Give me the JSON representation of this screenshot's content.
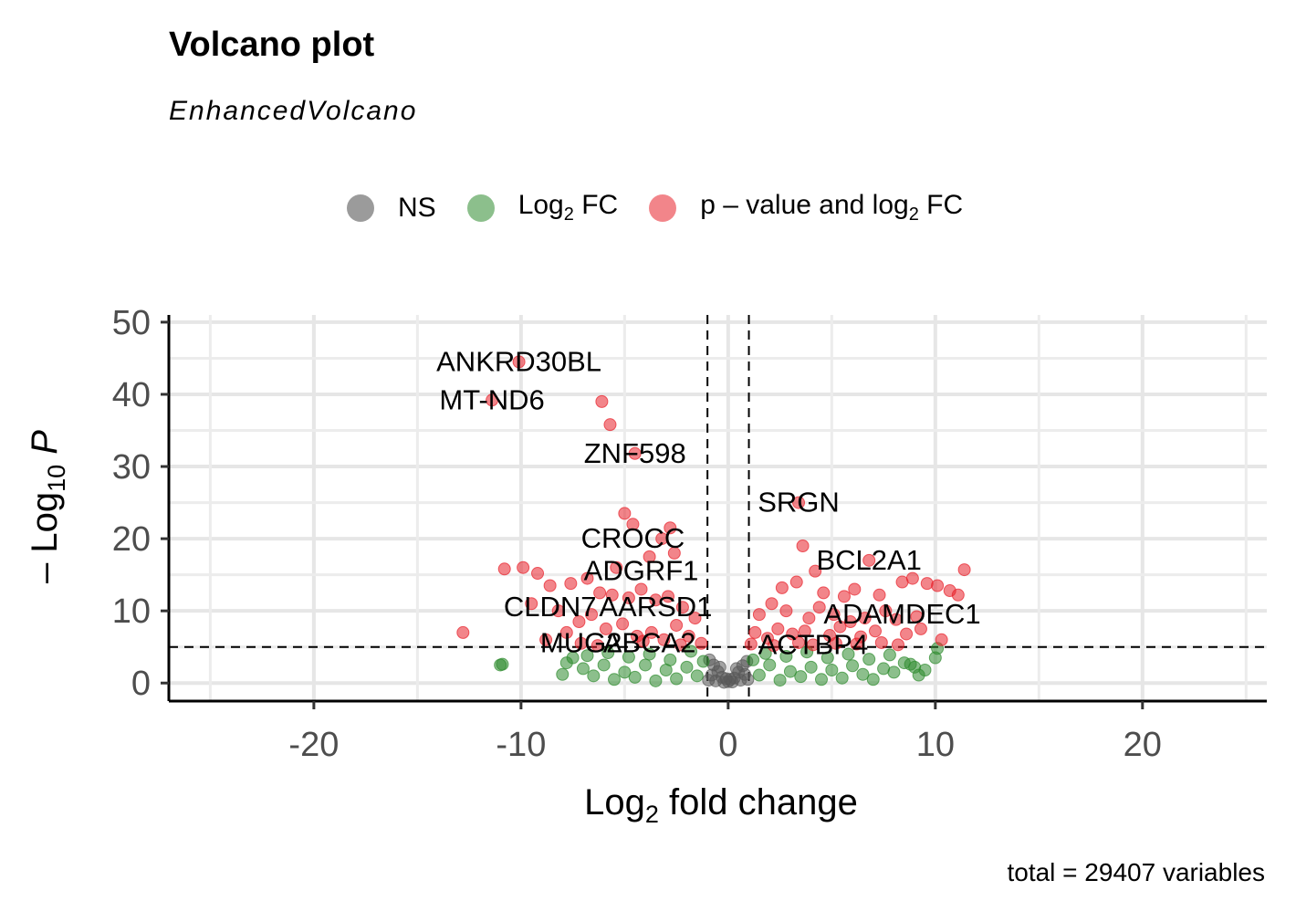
{
  "chart_data": {
    "type": "scatter",
    "title": "Volcano plot",
    "subtitle": "EnhancedVolcano",
    "caption": "total = 29407 variables",
    "xlabel": "Log2 fold change",
    "ylabel": "-Log10 P",
    "xlim": [
      -27,
      26
    ],
    "ylim": [
      -2.5,
      51
    ],
    "x_ticks": [
      -20,
      -10,
      0,
      10,
      20
    ],
    "x_tick_labels": [
      "-20",
      "-10",
      "0",
      "10",
      "20"
    ],
    "y_ticks": [
      0,
      10,
      20,
      30,
      40,
      50
    ],
    "y_tick_labels": [
      "0",
      "10",
      "20",
      "30",
      "40",
      "50"
    ],
    "grid": true,
    "legend_position": "top",
    "fc_cutoff": 1,
    "p_cutoff_neglog10": 5,
    "series": [
      {
        "name": "NS",
        "color": "#595959",
        "points": [
          [
            -0.9,
            3.2
          ],
          [
            -0.7,
            2.5
          ],
          [
            -0.5,
            1.6
          ],
          [
            -0.3,
            0.8
          ],
          [
            0,
            0.2
          ],
          [
            0.3,
            0.7
          ],
          [
            0.5,
            1.5
          ],
          [
            0.7,
            2.4
          ],
          [
            0.9,
            3.0
          ],
          [
            -0.6,
            0.3
          ],
          [
            0.6,
            0.4
          ],
          [
            -0.2,
            0.1
          ],
          [
            0.2,
            0.15
          ],
          [
            -0.8,
            1.1
          ],
          [
            0.8,
            1.2
          ],
          [
            -0.4,
            2.2
          ],
          [
            0.4,
            2.0
          ],
          [
            0.1,
            0.5
          ],
          [
            -0.1,
            0.6
          ],
          [
            -0.95,
            0.4
          ],
          [
            0.95,
            0.5
          ]
        ]
      },
      {
        "name": "Log2 FC",
        "color": "#2e8b2e",
        "points": [
          [
            -11,
            2.5
          ],
          [
            -10.9,
            2.6
          ],
          [
            -7.5,
            3.5
          ],
          [
            -7,
            2.0
          ],
          [
            -6.5,
            1.0
          ],
          [
            -6,
            2.5
          ],
          [
            -5.5,
            0.5
          ],
          [
            -5,
            1.5
          ],
          [
            -4.5,
            0.8
          ],
          [
            -4,
            2.5
          ],
          [
            -3.5,
            0.3
          ],
          [
            -3,
            1.8
          ],
          [
            -2.5,
            0.6
          ],
          [
            -2,
            2.2
          ],
          [
            -1.5,
            1.0
          ],
          [
            -1.2,
            3.0
          ],
          [
            1.2,
            3.2
          ],
          [
            1.5,
            1.1
          ],
          [
            2,
            2.5
          ],
          [
            2.5,
            0.4
          ],
          [
            3,
            1.6
          ],
          [
            3.5,
            0.9
          ],
          [
            4,
            2.2
          ],
          [
            4.5,
            0.5
          ],
          [
            5,
            1.8
          ],
          [
            5.5,
            0.7
          ],
          [
            6,
            2.4
          ],
          [
            6.5,
            1.2
          ],
          [
            7,
            0.5
          ],
          [
            7.5,
            2.0
          ],
          [
            8,
            1.5
          ],
          [
            8.5,
            2.8
          ],
          [
            9,
            2.2
          ],
          [
            9.5,
            1.8
          ],
          [
            10,
            3.5
          ],
          [
            10.1,
            4.8
          ],
          [
            -8,
            1.2
          ],
          [
            -7.8,
            2.8
          ],
          [
            -6.8,
            3.8
          ],
          [
            -5.8,
            4.2
          ],
          [
            -4.8,
            3.6
          ],
          [
            -3.8,
            4.0
          ],
          [
            -2.8,
            3.2
          ],
          [
            -1.8,
            4.4
          ],
          [
            1.8,
            4.1
          ],
          [
            2.8,
            3.7
          ],
          [
            3.8,
            4.3
          ],
          [
            4.8,
            3.5
          ],
          [
            5.8,
            4.0
          ],
          [
            6.8,
            3.3
          ],
          [
            7.8,
            3.9
          ],
          [
            8.8,
            2.6
          ],
          [
            9.2,
            1.1
          ]
        ]
      },
      {
        "name": "p - value and log2 FC",
        "color": "#e8202a",
        "points": [
          [
            -10.1,
            44.5
          ],
          [
            -11.4,
            39.2
          ],
          [
            -6.1,
            39.0
          ],
          [
            -5.7,
            35.8
          ],
          [
            -4.5,
            31.8
          ],
          [
            3.4,
            25.0
          ],
          [
            -5,
            23.5
          ],
          [
            -4.6,
            22.0
          ],
          [
            -2.8,
            21.5
          ],
          [
            -3.2,
            20.0
          ],
          [
            -2.6,
            18.0
          ],
          [
            -3.8,
            17.5
          ],
          [
            -5.4,
            16.0
          ],
          [
            -10.8,
            15.8
          ],
          [
            -9.9,
            16.0
          ],
          [
            -9.2,
            15.2
          ],
          [
            -8.6,
            13.5
          ],
          [
            -7.6,
            13.8
          ],
          [
            -6.8,
            14.5
          ],
          [
            -6.2,
            12.5
          ],
          [
            -5.6,
            12.2
          ],
          [
            -4.8,
            11.8
          ],
          [
            -4.2,
            13.0
          ],
          [
            -3.5,
            11.5
          ],
          [
            -2.9,
            12.0
          ],
          [
            -2.2,
            10.5
          ],
          [
            -1.6,
            9.0
          ],
          [
            -9.5,
            11.0
          ],
          [
            -8.2,
            10.0
          ],
          [
            -7.2,
            8.5
          ],
          [
            -6.6,
            9.5
          ],
          [
            -5.9,
            7.5
          ],
          [
            -5.1,
            8.2
          ],
          [
            -4.4,
            6.5
          ],
          [
            -3.7,
            7.0
          ],
          [
            -3.1,
            6.0
          ],
          [
            -2.5,
            8.0
          ],
          [
            -1.9,
            6.5
          ],
          [
            -1.3,
            5.5
          ],
          [
            -7.8,
            7.0
          ],
          [
            -8.8,
            6.0
          ],
          [
            -12.8,
            7.0
          ],
          [
            -7.1,
            5.5
          ],
          [
            -6.3,
            5.2
          ],
          [
            -4.1,
            5.8
          ],
          [
            -2.3,
            5.3
          ],
          [
            3.6,
            19.0
          ],
          [
            6.8,
            17.0
          ],
          [
            4.2,
            15.5
          ],
          [
            3.3,
            14.0
          ],
          [
            2.6,
            13.2
          ],
          [
            4.6,
            12.5
          ],
          [
            5.6,
            12.0
          ],
          [
            6.1,
            13.0
          ],
          [
            7.3,
            12.2
          ],
          [
            8.4,
            14.0
          ],
          [
            8.9,
            14.5
          ],
          [
            9.6,
            13.8
          ],
          [
            10.1,
            13.5
          ],
          [
            10.7,
            12.8
          ],
          [
            11.4,
            15.7
          ],
          [
            11.1,
            12.2
          ],
          [
            1.5,
            9.5
          ],
          [
            2.1,
            11.0
          ],
          [
            2.8,
            10.0
          ],
          [
            3.9,
            9.0
          ],
          [
            4.4,
            10.5
          ],
          [
            5.1,
            9.5
          ],
          [
            5.9,
            8.5
          ],
          [
            6.6,
            9.0
          ],
          [
            7.6,
            10.0
          ],
          [
            8.1,
            8.8
          ],
          [
            9.1,
            9.2
          ],
          [
            10.3,
            6.0
          ],
          [
            1.3,
            7.0
          ],
          [
            1.9,
            6.2
          ],
          [
            2.4,
            7.5
          ],
          [
            3.1,
            6.8
          ],
          [
            3.7,
            7.2
          ],
          [
            4.9,
            6.6
          ],
          [
            5.4,
            7.8
          ],
          [
            6.4,
            6.4
          ],
          [
            7.1,
            7.2
          ],
          [
            8.6,
            6.8
          ],
          [
            1.1,
            5.4
          ],
          [
            2.2,
            5.2
          ],
          [
            3.4,
            5.6
          ],
          [
            4.1,
            5.3
          ],
          [
            5.2,
            5.5
          ],
          [
            6.2,
            5.4
          ],
          [
            7.4,
            5.6
          ],
          [
            8.2,
            5.3
          ],
          [
            9.3,
            7.5
          ]
        ]
      }
    ],
    "annotations": [
      {
        "label": "ANKRD30BL",
        "x": -10.1,
        "y": 44.5
      },
      {
        "label": "MT-ND6",
        "x": -11.4,
        "y": 39.2
      },
      {
        "label": "ZNF598",
        "x": -4.5,
        "y": 31.8
      },
      {
        "label": "SRGN",
        "x": 3.4,
        "y": 25.0
      },
      {
        "label": "CROCC",
        "x": -4.6,
        "y": 20.0
      },
      {
        "label": "ADGRF1",
        "x": -4.2,
        "y": 15.5
      },
      {
        "label": "BCL2A1",
        "x": 6.8,
        "y": 17.0
      },
      {
        "label": "CLDN7",
        "x": -8.6,
        "y": 10.5
      },
      {
        "label": "AARSD1",
        "x": -3.5,
        "y": 10.5
      },
      {
        "label": "ADAMDEC1",
        "x": 8.4,
        "y": 9.5
      },
      {
        "label": "MUG2",
        "x": -7.1,
        "y": 5.5
      },
      {
        "label": "ABCA2",
        "x": -3.8,
        "y": 5.5
      },
      {
        "label": "ACTBP4",
        "x": 4.1,
        "y": 5.3
      }
    ]
  }
}
